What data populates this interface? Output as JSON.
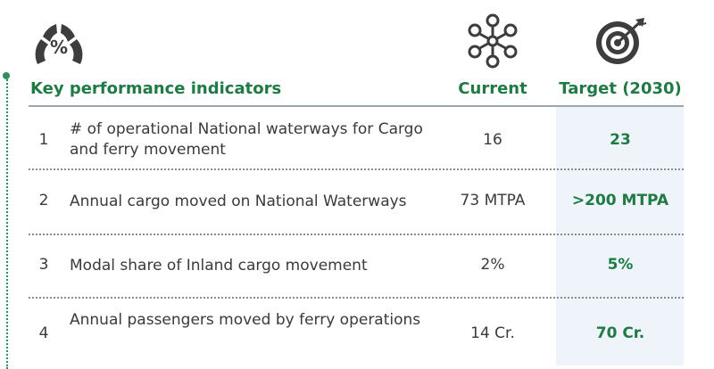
{
  "icons": {
    "kpi": "percentage-gauge-icon",
    "current": "network-hub-icon",
    "target": "bullseye-target-icon",
    "kpi_symbol": "%"
  },
  "colors": {
    "accent_green": "#1f7a45",
    "icon_gray": "#3d3d3d",
    "target_bg": "#eef4f9"
  },
  "table": {
    "headers": {
      "kpi": "Key performance indicators",
      "current": "Current",
      "target": "Target (2030)"
    },
    "rows": [
      {
        "num": "1",
        "desc": "# of operational National waterways for Cargo and ferry movement",
        "current": "16",
        "target": "23"
      },
      {
        "num": "2",
        "desc": "Annual cargo moved on National Waterways",
        "current": "73 MTPA",
        "target": ">200 MTPA"
      },
      {
        "num": "3",
        "desc": "Modal share of Inland cargo movement",
        "current": "2%",
        "target": "5%"
      },
      {
        "num": "4",
        "desc": "Annual passengers moved by ferry operations",
        "current": "14 Cr.",
        "target": "70 Cr."
      }
    ]
  }
}
